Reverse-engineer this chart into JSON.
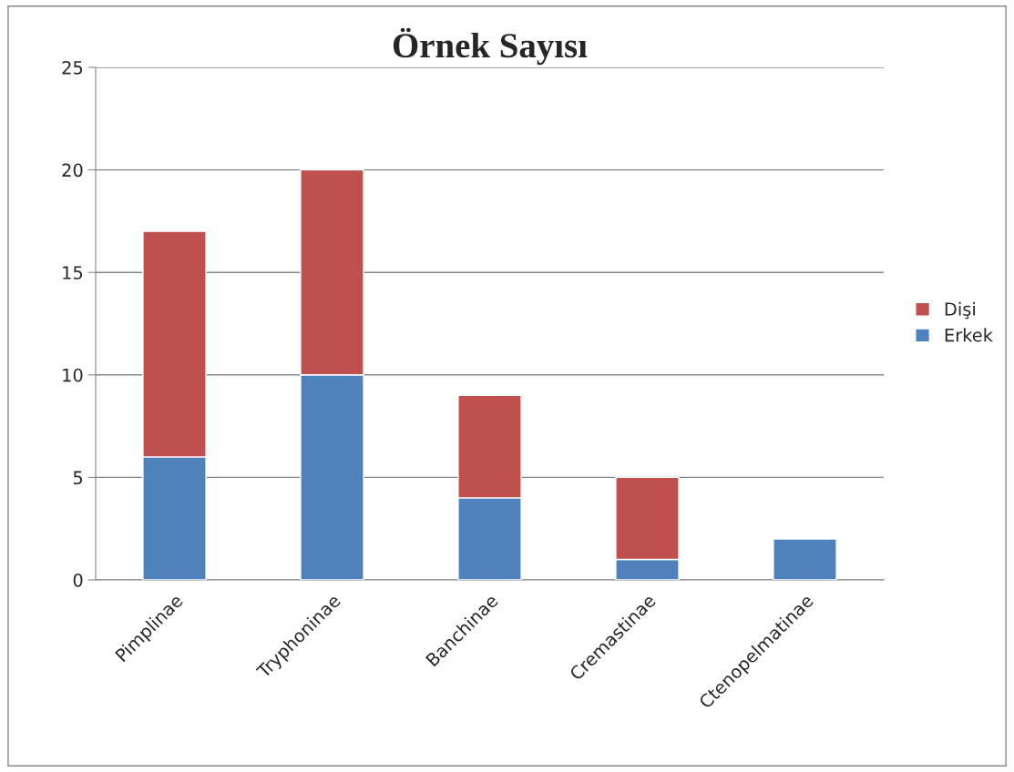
{
  "chart_data": {
    "type": "bar",
    "title": "Örnek Sayısı",
    "stacked": true,
    "categories": [
      "Pimplinae",
      "Tryphoninae",
      "Banchinae",
      "Cremastinae",
      "Ctenopelmatinae"
    ],
    "series": [
      {
        "name": "Erkek",
        "color": "#4f81bd",
        "values": [
          6,
          10,
          4,
          1,
          2
        ]
      },
      {
        "name": "Dişi",
        "color": "#c0504d",
        "values": [
          11,
          10,
          5,
          4,
          null
        ]
      }
    ],
    "ylim": [
      0,
      25
    ],
    "yticks": [
      0,
      5,
      10,
      15,
      20,
      25
    ],
    "grid": "y",
    "legend": "right"
  }
}
